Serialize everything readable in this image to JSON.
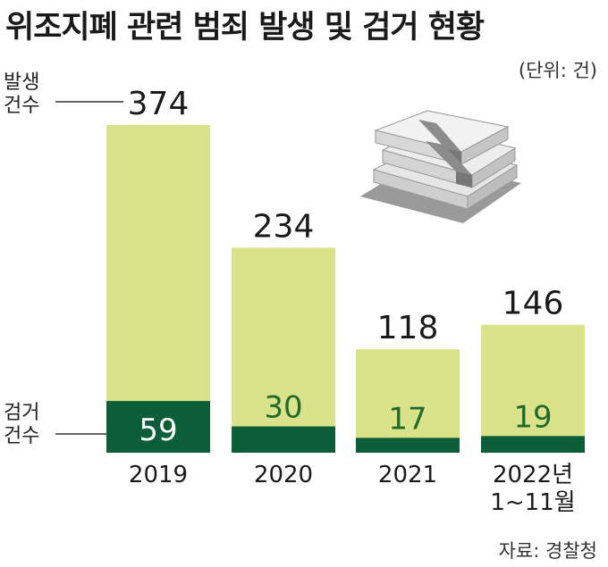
{
  "title": "위조지폐 관련 범죄 발생 및 검거 현황",
  "unit": "(단위: 건)",
  "source": "자료: 경찰청",
  "labels": {
    "occurred": "발생\n건수",
    "arrested": "검거\n건수"
  },
  "colors": {
    "occurred": "#dae38a",
    "arrested": "#0b5e38",
    "arrested_text_on_light": "#1f6b2c",
    "arrested_text_on_dark": "#ffffff"
  },
  "chart_data": {
    "type": "bar",
    "categories": [
      "2019",
      "2020",
      "2021",
      "2022년\n1~11월"
    ],
    "series": [
      {
        "name": "발생 건수",
        "values": [
          374,
          234,
          118,
          146
        ]
      },
      {
        "name": "검거 건수",
        "values": [
          59,
          30,
          17,
          19
        ]
      }
    ],
    "ylim": [
      0,
      374
    ],
    "grid": false,
    "legend": "left"
  }
}
